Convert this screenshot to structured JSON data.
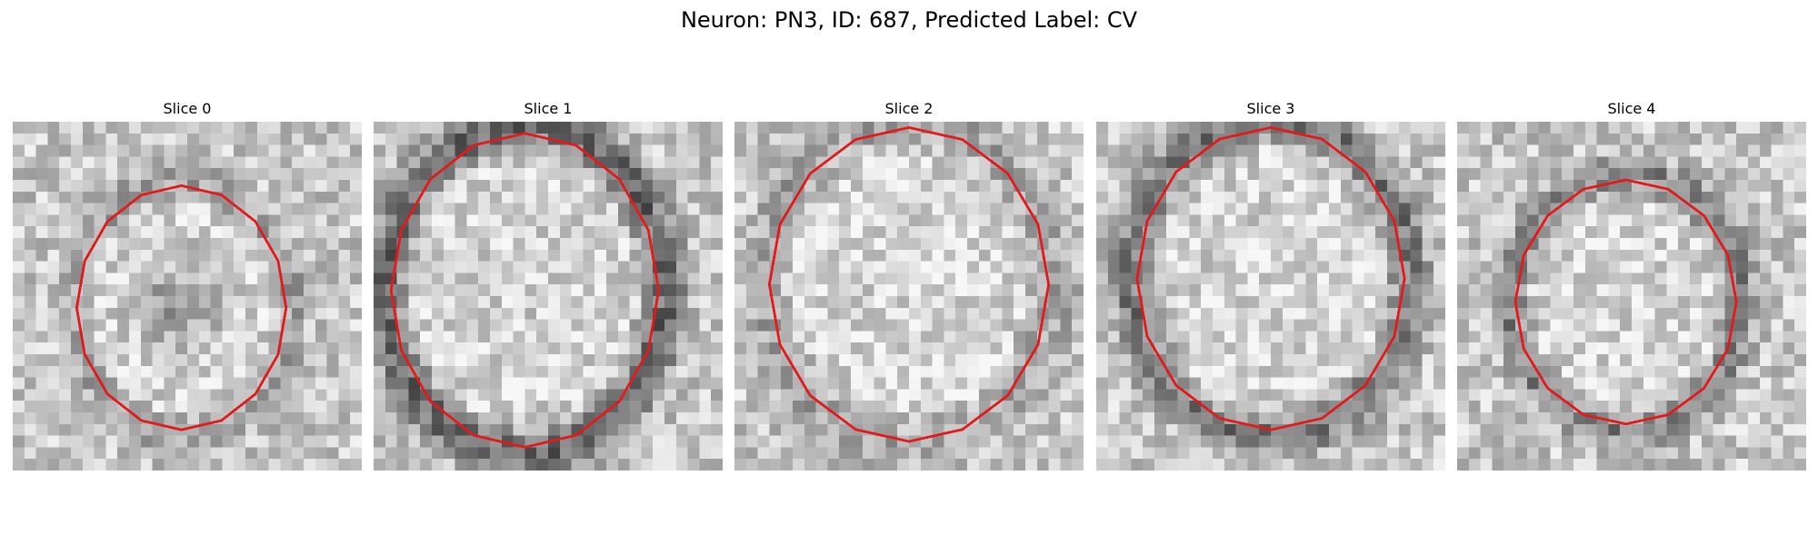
{
  "figure": {
    "title": "Neuron: PN3, ID: 687, Predicted Label: CV",
    "outline_color": "#e31a1c"
  },
  "slices": [
    {
      "label": "Slice 0",
      "dark_ring": 0.35,
      "blob": 0.45,
      "seed": 11
    },
    {
      "label": "Slice 1",
      "dark_ring": 0.85,
      "blob": 0.05,
      "seed": 23
    },
    {
      "label": "Slice 2",
      "dark_ring": 0.3,
      "blob": 0.0,
      "seed": 37
    },
    {
      "label": "Slice 3",
      "dark_ring": 0.7,
      "blob": 0.0,
      "seed": 51
    },
    {
      "label": "Slice 4",
      "dark_ring": 0.6,
      "blob": 0.0,
      "seed": 67
    }
  ]
}
